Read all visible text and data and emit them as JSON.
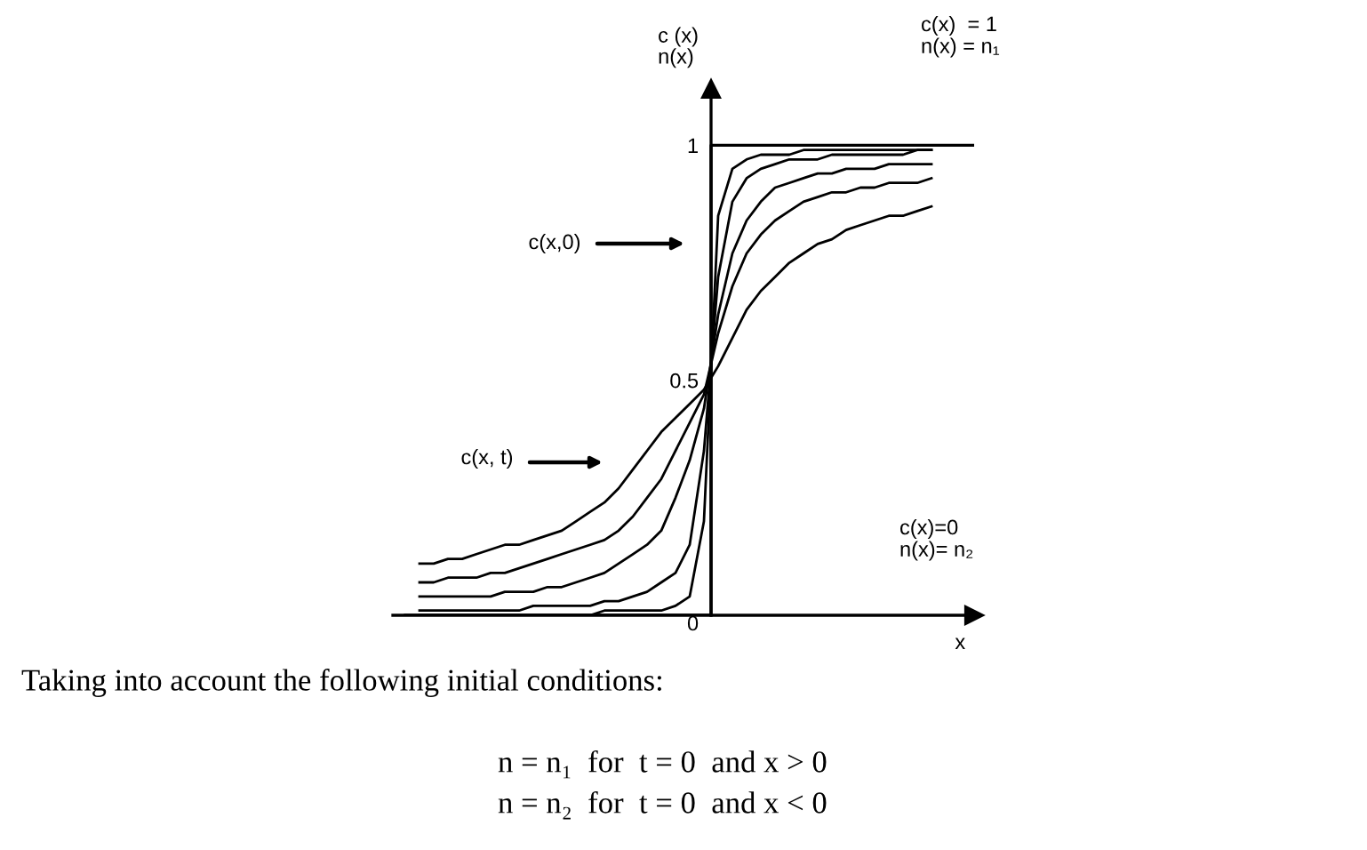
{
  "chart_data": {
    "type": "line",
    "ylabel": "c (x)\nn(x)",
    "xlabel": "x",
    "categories": [
      null,
      null,
      null,
      null,
      null,
      null,
      null,
      null,
      null,
      null,
      null,
      null,
      null,
      null,
      null,
      null,
      null,
      null,
      null,
      null,
      null,
      null,
      null,
      null,
      null,
      null,
      null,
      null,
      null,
      null,
      null,
      null,
      null,
      null,
      null,
      null,
      null,
      null,
      null,
      null,
      null
    ],
    "series": [
      {
        "color": "#000000",
        "values": [
          null,
          0.11,
          0.11,
          0.12,
          0.12,
          0.13,
          0.14,
          0.15,
          0.15,
          0.16,
          0.17,
          0.18,
          0.2,
          0.22,
          0.24,
          0.27,
          0.31,
          0.35,
          0.39,
          0.42,
          0.45,
          0.48,
          0.53,
          0.59,
          0.65,
          0.69,
          0.72,
          0.75,
          0.77,
          0.79,
          0.8,
          0.82,
          0.83,
          0.84,
          0.85,
          0.85,
          0.86,
          0.87,
          null,
          null,
          null
        ]
      },
      {
        "color": "#000000",
        "values": [
          null,
          0.07,
          0.07,
          0.08,
          0.08,
          0.08,
          0.09,
          0.09,
          0.1,
          0.11,
          0.12,
          0.13,
          0.14,
          0.15,
          0.16,
          0.18,
          0.21,
          0.25,
          0.29,
          0.35,
          0.41,
          0.47,
          0.6,
          0.7,
          0.77,
          0.81,
          0.84,
          0.86,
          0.88,
          0.89,
          0.9,
          0.9,
          0.91,
          0.91,
          0.92,
          0.92,
          0.92,
          0.93,
          null,
          null,
          null
        ]
      },
      {
        "color": "#000000",
        "values": [
          null,
          0.04,
          0.04,
          0.04,
          0.04,
          0.04,
          0.04,
          0.05,
          0.05,
          0.05,
          0.06,
          0.06,
          0.07,
          0.08,
          0.09,
          0.11,
          0.13,
          0.15,
          0.18,
          0.25,
          0.33,
          0.44,
          0.64,
          0.77,
          0.84,
          0.88,
          0.91,
          0.92,
          0.93,
          0.94,
          0.94,
          0.95,
          0.95,
          0.95,
          0.96,
          0.96,
          0.96,
          0.96,
          null,
          null,
          null
        ]
      },
      {
        "color": "#000000",
        "values": [
          null,
          0.01,
          0.01,
          0.01,
          0.01,
          0.01,
          0.01,
          0.01,
          0.01,
          0.02,
          0.02,
          0.02,
          0.02,
          0.02,
          0.03,
          0.03,
          0.04,
          0.05,
          0.07,
          0.09,
          0.15,
          0.35,
          0.72,
          0.88,
          0.93,
          0.95,
          0.96,
          0.97,
          0.97,
          0.97,
          0.98,
          0.98,
          0.98,
          0.98,
          0.98,
          0.98,
          0.99,
          0.99,
          null,
          null,
          null
        ]
      },
      {
        "color": "#000000",
        "values": [
          null,
          0,
          0,
          0,
          0,
          0,
          0,
          0,
          0,
          0,
          0,
          0,
          0,
          0,
          0.01,
          0.01,
          0.01,
          0.01,
          0.01,
          0.02,
          0.04,
          0.2,
          0.85,
          0.95,
          0.97,
          0.98,
          0.98,
          0.98,
          0.99,
          0.99,
          0.99,
          0.99,
          0.99,
          0.99,
          0.99,
          0.99,
          0.99,
          0.99,
          null,
          null,
          null
        ]
      },
      {
        "type": "step",
        "color": "#000000",
        "values": [
          0,
          0,
          0,
          0,
          0,
          0,
          0,
          0,
          0,
          0,
          0,
          0,
          0,
          0,
          0,
          0,
          0,
          0,
          0,
          0,
          0,
          0,
          1,
          1,
          1,
          1,
          1,
          1,
          1,
          1,
          1,
          1,
          1,
          1,
          1,
          1,
          1,
          1,
          1,
          1,
          1
        ]
      }
    ],
    "ylim": [
      0,
      1.12
    ],
    "yticks": [
      0,
      0.5,
      1
    ],
    "tick_labels": "y",
    "line_style": "solid",
    "annotations": [
      "c(x,0)",
      "c(x, t)",
      "c(x)  = 1\nn(x) = n₁",
      "c(x)=0\nn(x)= n₂",
      "Taking into account the following initial conditions:",
      "n = n₁  for  t = 0  and x > 0",
      "n = n₂  for  t = 0  and x < 0"
    ]
  }
}
